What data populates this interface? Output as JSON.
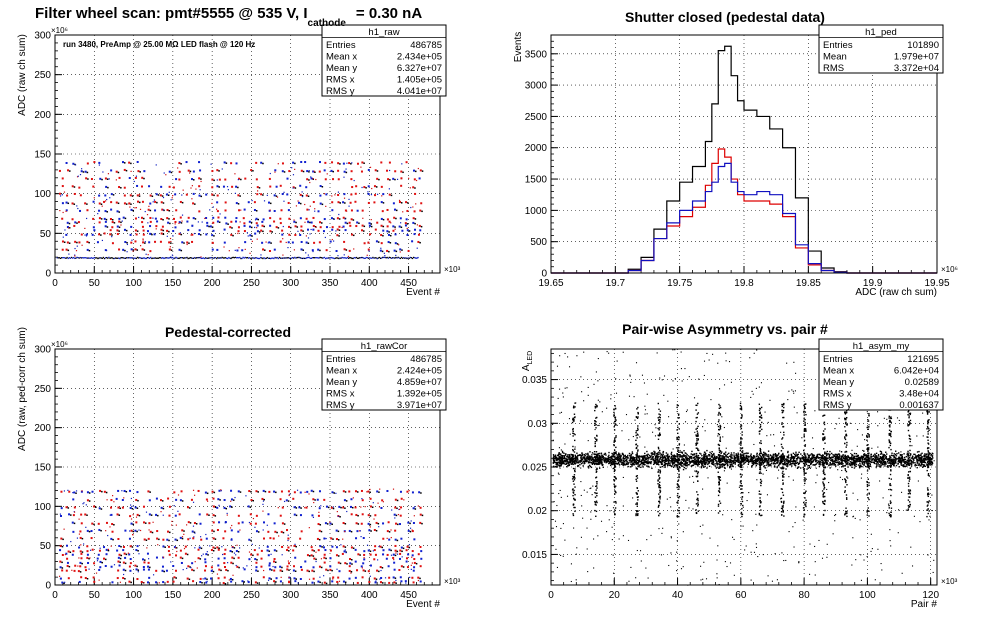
{
  "chart_data": [
    {
      "type": "scatter",
      "title": "Filter wheel scan: pmt#5555 @   535 V, I",
      "title_sub": "cathode",
      "title_tail": "= 0.30 nA",
      "annotation": "run 3480, PreAmp @ 25.00 MΩ LED flash @  120 Hz",
      "xlabel": "Event #",
      "ylabel": "ADC (raw ch sum)",
      "x_exponent": "×10³",
      "y_exponent": "×10⁶",
      "xlim": [
        0,
        490
      ],
      "ylim": [
        0,
        300
      ],
      "xticks": [
        0,
        50,
        100,
        150,
        200,
        250,
        300,
        350,
        400,
        450
      ],
      "yticks": [
        0,
        50,
        100,
        150,
        200,
        250,
        300
      ],
      "levels": [
        20,
        30,
        40,
        50,
        55,
        60,
        65,
        70,
        80,
        90,
        100,
        110,
        120,
        130,
        140
      ],
      "stats": {
        "name": "h1_raw",
        "rows": [
          [
            "Entries",
            "486785"
          ],
          [
            "Mean x",
            "2.434e+05"
          ],
          [
            "Mean y",
            "6.327e+07"
          ],
          [
            "RMS x",
            "1.405e+05"
          ],
          [
            "RMS y",
            "4.041e+07"
          ]
        ]
      },
      "grid": true
    },
    {
      "type": "line",
      "title": "Shutter closed (pedestal data)",
      "xlabel": "ADC (raw ch sum)",
      "ylabel": "Events",
      "x_exponent": "×10⁶",
      "xlim": [
        19.65,
        19.95
      ],
      "ylim": [
        0,
        3800
      ],
      "xticks": [
        19.65,
        19.7,
        19.75,
        19.8,
        19.85,
        19.9,
        19.95
      ],
      "yticks": [
        0,
        500,
        1000,
        1500,
        2000,
        2500,
        3000,
        3500
      ],
      "x": [
        19.7,
        19.71,
        19.72,
        19.73,
        19.74,
        19.75,
        19.76,
        19.77,
        19.775,
        19.78,
        19.785,
        19.79,
        19.795,
        19.8,
        19.81,
        19.82,
        19.83,
        19.84,
        19.85,
        19.86,
        19.87,
        19.88
      ],
      "series": [
        {
          "color": "#000000",
          "values": [
            0,
            60,
            250,
            700,
            1150,
            1450,
            1700,
            2100,
            2700,
            3550,
            3620,
            3150,
            2750,
            2600,
            2500,
            2300,
            2000,
            1200,
            350,
            80,
            20,
            0
          ]
        },
        {
          "color": "#dd0000",
          "values": [
            0,
            40,
            200,
            550,
            750,
            900,
            1050,
            1400,
            1750,
            1980,
            1850,
            1500,
            1250,
            1150,
            1150,
            1100,
            900,
            400,
            130,
            40,
            10,
            0
          ]
        },
        {
          "color": "#1010c0",
          "values": [
            0,
            40,
            200,
            550,
            800,
            1000,
            1150,
            1300,
            1450,
            1700,
            1750,
            1450,
            1300,
            1250,
            1300,
            1250,
            950,
            450,
            150,
            40,
            10,
            0
          ]
        }
      ],
      "stats": {
        "name": "h1_ped",
        "rows": [
          [
            "Entries",
            "101890"
          ],
          [
            "Mean",
            "1.979e+07"
          ],
          [
            "RMS",
            "3.372e+04"
          ]
        ]
      },
      "grid": true
    },
    {
      "type": "scatter",
      "title": "Pedestal-corrected",
      "xlabel": "Event #",
      "ylabel": "ADC (raw, ped-corr ch sum)",
      "x_exponent": "×10³",
      "y_exponent": "×10⁶",
      "xlim": [
        0,
        490
      ],
      "ylim": [
        0,
        300
      ],
      "xticks": [
        0,
        50,
        100,
        150,
        200,
        250,
        300,
        350,
        400,
        450
      ],
      "yticks": [
        0,
        50,
        100,
        150,
        200,
        250,
        300
      ],
      "levels": [
        5,
        10,
        20,
        25,
        30,
        35,
        40,
        45,
        50,
        60,
        70,
        80,
        90,
        100,
        110,
        120
      ],
      "stats": {
        "name": "h1_rawCor",
        "rows": [
          [
            "Entries",
            "486785"
          ],
          [
            "Mean x",
            "2.424e+05"
          ],
          [
            "Mean y",
            "4.859e+07"
          ],
          [
            "RMS x",
            "1.392e+05"
          ],
          [
            "RMS y",
            "3.971e+07"
          ]
        ]
      },
      "grid": true
    },
    {
      "type": "scatter",
      "title": "Pair-wise Asymmetry vs. pair #",
      "xlabel": "Pair #",
      "ylabel": "A_LED",
      "x_exponent": "×10³",
      "xlim": [
        0,
        122
      ],
      "ylim": [
        0.0115,
        0.0385
      ],
      "xticks": [
        0,
        20,
        40,
        60,
        80,
        100,
        120
      ],
      "yticks": [
        0.015,
        0.02,
        0.025,
        0.03,
        0.035
      ],
      "band_center": 0.0259,
      "spike_x": [
        7,
        14,
        20,
        27,
        34,
        40,
        46,
        53,
        60,
        66,
        73,
        80,
        86,
        93,
        100,
        107,
        113,
        119
      ],
      "stats": {
        "name": "h1_asym_my",
        "rows": [
          [
            "Entries",
            "121695"
          ],
          [
            "Mean x",
            "6.042e+04"
          ],
          [
            "Mean y",
            "0.02589"
          ],
          [
            "RMS x",
            "3.48e+04"
          ],
          [
            "RMS y",
            "0.001637"
          ]
        ]
      },
      "grid": true
    }
  ]
}
